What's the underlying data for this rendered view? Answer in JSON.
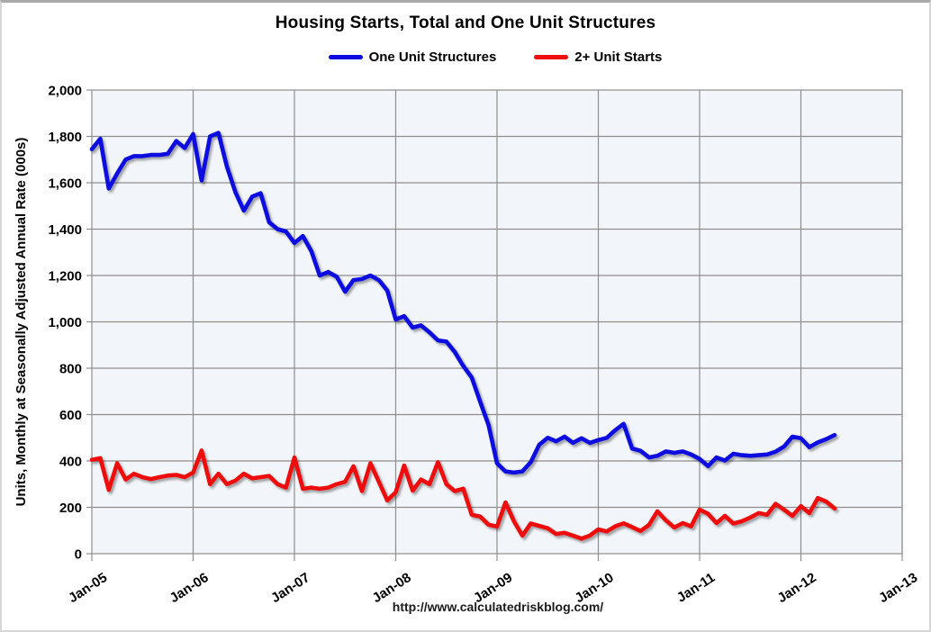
{
  "chart_data": {
    "type": "line",
    "title": "Housing Starts, Total and One Unit Structures",
    "ylabel": "Units, Monthly at Seasonally Adjusted Annual Rate (000s)",
    "footer_url": "http://www.calculatedriskblog.com/",
    "legend_position": "top",
    "grid": true,
    "plot_bg": "#f2f5f9",
    "grid_color": "#8e8e8e",
    "ylim": [
      0,
      2000
    ],
    "y_step": 200,
    "y_tick_labels": [
      "0",
      "200",
      "400",
      "600",
      "800",
      "1,000",
      "1,200",
      "1,400",
      "1,600",
      "1,800",
      "2,000"
    ],
    "x_tick_labels": [
      "Jan-05",
      "Jan-06",
      "Jan-07",
      "Jan-08",
      "Jan-09",
      "Jan-10",
      "Jan-11",
      "Jan-12",
      "Jan-13"
    ],
    "x_axis_span_months": 96,
    "x_start": "Jan-2005",
    "x_interval": "monthly",
    "series": [
      {
        "name": "One Unit Structures",
        "color": "#0a0ae0",
        "values": [
          1745,
          1790,
          1575,
          1640,
          1700,
          1715,
          1715,
          1720,
          1720,
          1725,
          1780,
          1750,
          1810,
          1610,
          1800,
          1815,
          1670,
          1560,
          1480,
          1540,
          1555,
          1430,
          1400,
          1390,
          1340,
          1370,
          1305,
          1200,
          1215,
          1195,
          1130,
          1180,
          1185,
          1200,
          1180,
          1135,
          1010,
          1025,
          975,
          985,
          955,
          920,
          915,
          870,
          810,
          760,
          655,
          555,
          390,
          355,
          350,
          355,
          395,
          470,
          500,
          485,
          505,
          478,
          498,
          478,
          490,
          500,
          533,
          560,
          454,
          444,
          415,
          422,
          441,
          435,
          441,
          428,
          409,
          378,
          415,
          402,
          431,
          425,
          422,
          425,
          428,
          440,
          462,
          505,
          498,
          460,
          480,
          494,
          512
        ]
      },
      {
        "name": "2+ Unit Starts",
        "color": "#ee0e0e",
        "values": [
          405,
          412,
          275,
          390,
          320,
          345,
          330,
          322,
          330,
          337,
          340,
          330,
          350,
          445,
          300,
          345,
          300,
          315,
          345,
          325,
          330,
          335,
          300,
          285,
          415,
          280,
          285,
          280,
          285,
          300,
          310,
          377,
          270,
          390,
          310,
          230,
          265,
          380,
          272,
          320,
          300,
          395,
          300,
          270,
          280,
          168,
          160,
          125,
          117,
          221,
          140,
          78,
          130,
          120,
          110,
          85,
          90,
          78,
          65,
          78,
          105,
          96,
          118,
          131,
          115,
          98,
          124,
          183,
          144,
          113,
          132,
          118,
          190,
          172,
          132,
          163,
          130,
          140,
          156,
          175,
          168,
          215,
          190,
          163,
          205,
          175,
          240,
          225,
          195
        ]
      }
    ]
  }
}
